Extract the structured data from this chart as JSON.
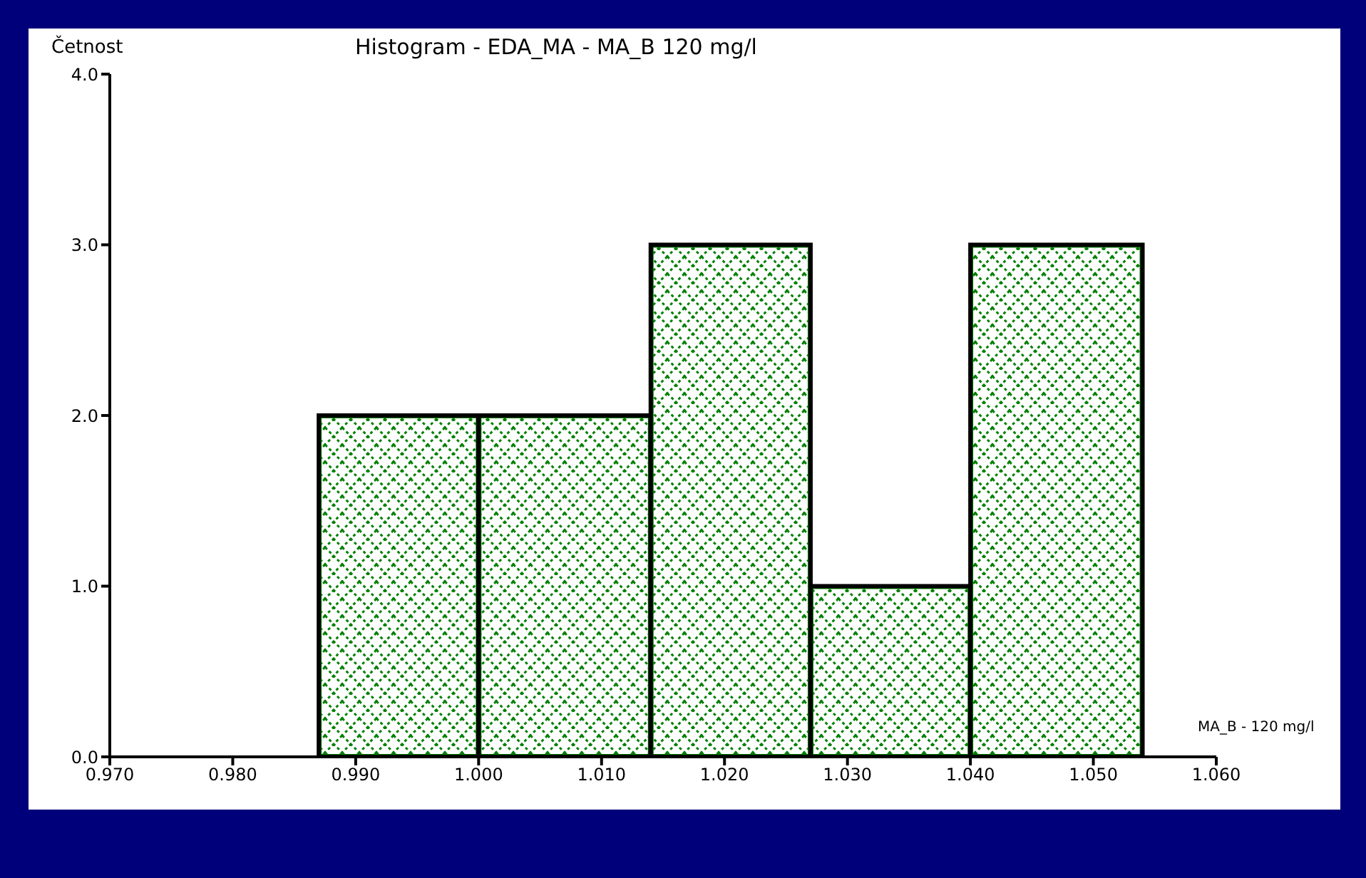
{
  "chart_data": {
    "type": "histogram",
    "title": "Histogram - EDA_MA - MA_B 120 mg/l",
    "ylabel": "Četnost",
    "xlabel": "MA_B - 120 mg/l",
    "bins": [
      0.987,
      1.0,
      1.014,
      1.027,
      1.04,
      1.054
    ],
    "values": [
      2,
      2,
      3,
      1,
      3
    ],
    "color": "#008000",
    "xlim": [
      0.97,
      1.06
    ],
    "xticks": [
      {
        "value": 0.97,
        "label": "0.970"
      },
      {
        "value": 0.98,
        "label": "0.980"
      },
      {
        "value": 0.99,
        "label": "0.990"
      },
      {
        "value": 1.0,
        "label": "1.000"
      },
      {
        "value": 1.01,
        "label": "1.010"
      },
      {
        "value": 1.02,
        "label": "1.020"
      },
      {
        "value": 1.03,
        "label": "1.030"
      },
      {
        "value": 1.04,
        "label": "1.040"
      },
      {
        "value": 1.05,
        "label": "1.050"
      },
      {
        "value": 1.06,
        "label": "1.060"
      }
    ],
    "ylim": [
      0,
      4
    ],
    "yticks": [
      {
        "value": 0,
        "label": "0.0"
      },
      {
        "value": 1,
        "label": "1.0"
      },
      {
        "value": 2,
        "label": "2.0"
      },
      {
        "value": 3,
        "label": "3.0"
      },
      {
        "value": 4,
        "label": "4.0"
      }
    ],
    "grid": false,
    "legend": false
  }
}
